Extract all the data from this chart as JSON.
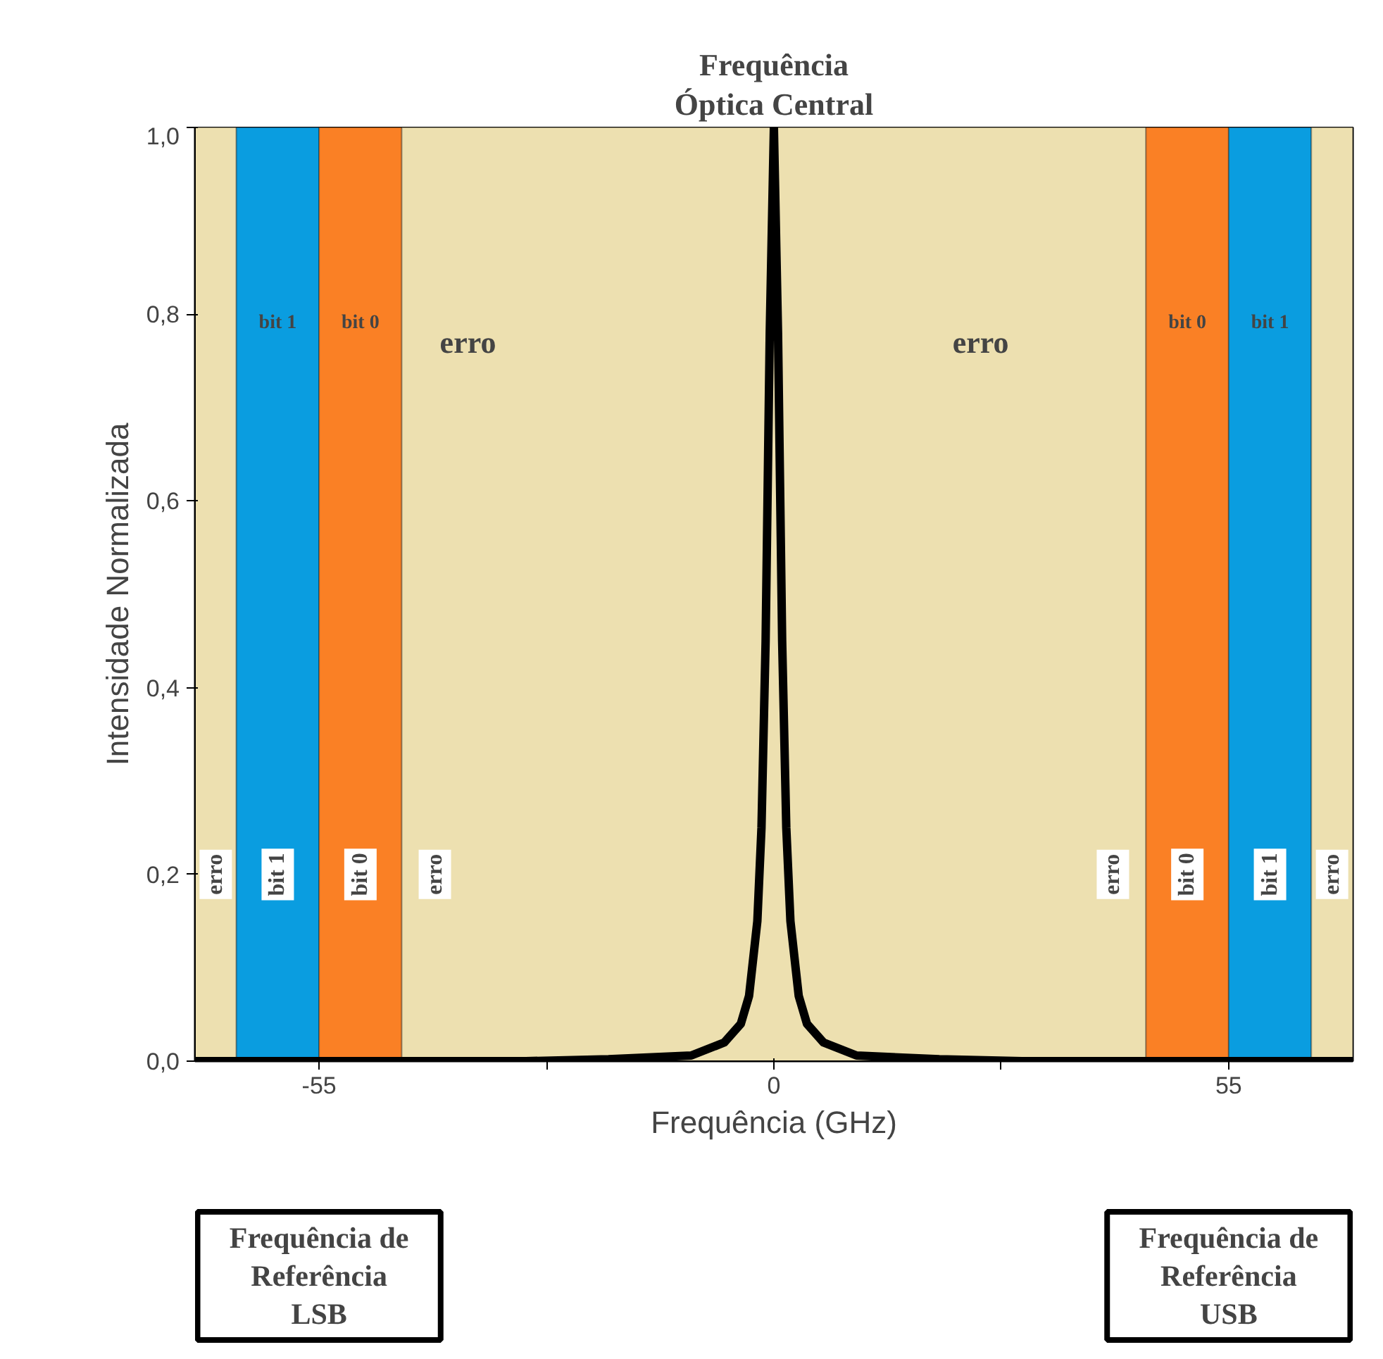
{
  "chart_data": {
    "type": "line",
    "xlabel": "Frequência (GHz)",
    "ylabel": "Intensidade Normalizada",
    "x": [
      -70,
      -30,
      -20,
      -10,
      -6,
      -4,
      -3,
      -2,
      -1.5,
      -1,
      -0.5,
      0,
      0.5,
      1,
      1.5,
      2,
      3,
      4,
      6,
      10,
      20,
      30,
      70
    ],
    "series": [
      {
        "color": "#000000",
        "values": [
          0,
          0,
          0.002,
          0.006,
          0.02,
          0.04,
          0.07,
          0.15,
          0.25,
          0.45,
          0.78,
          1.0,
          0.78,
          0.45,
          0.25,
          0.15,
          0.07,
          0.04,
          0.02,
          0.006,
          0.002,
          0,
          0
        ]
      }
    ],
    "xlim": [
      -70,
      70
    ],
    "ylim": [
      0,
      1
    ],
    "xticks": [
      -55,
      {
        "value": -27.5,
        "label": null
      },
      0,
      {
        "value": 27.5,
        "label": null
      },
      55
    ],
    "yticks": [
      {
        "value": 0,
        "label": "0,0"
      },
      {
        "value": 0.2,
        "label": "0,2"
      },
      {
        "value": 0.4,
        "label": "0,4"
      },
      {
        "value": 0.6,
        "label": "0,6"
      },
      {
        "value": 0.8,
        "label": "0,8"
      },
      {
        "value": 1,
        "label": "1,0"
      }
    ],
    "bands": [
      {
        "axis": "x",
        "from": -70,
        "to": -65,
        "color": "#ede0b0"
      },
      {
        "axis": "x",
        "from": -65,
        "to": -55,
        "color": "#0a9de0"
      },
      {
        "axis": "x",
        "from": -55,
        "to": -45,
        "color": "#fa8025"
      },
      {
        "axis": "x",
        "from": -45,
        "to": 45,
        "color": "#ede0b0"
      },
      {
        "axis": "x",
        "from": 45,
        "to": 55,
        "color": "#fa8025"
      },
      {
        "axis": "x",
        "from": 55,
        "to": 65,
        "color": "#0a9de0"
      },
      {
        "axis": "x",
        "from": 65,
        "to": 70,
        "color": "#ede0b0"
      }
    ],
    "annotations": [
      "Frequência\nÓptica Central",
      "bit 1",
      "bit 0",
      "erro",
      "erro",
      "bit 0",
      "bit 1",
      "erro",
      "bit 1",
      "bit 0",
      "erro",
      "erro",
      "bit 0",
      "bit 1",
      "erro",
      "Frequência de\nReferência\nLSB",
      "Frequência de\nReferência\nUSB"
    ],
    "grid": false,
    "line_style": "solid",
    "marker": "none"
  }
}
